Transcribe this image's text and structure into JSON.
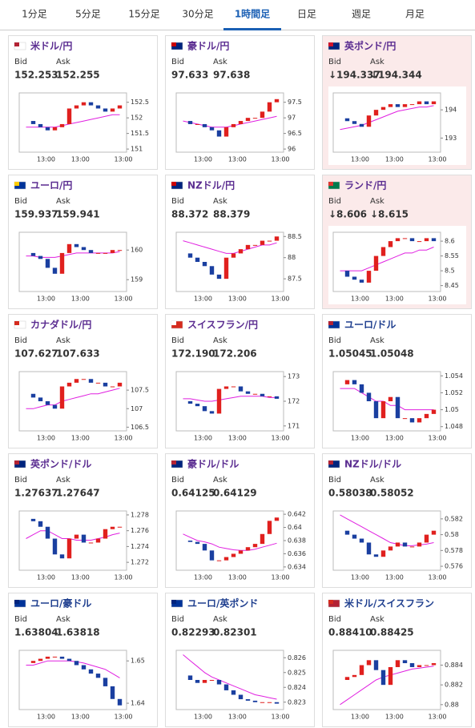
{
  "tabs": [
    "1分足",
    "5分足",
    "15分足",
    "30分足",
    "1時間足",
    "日足",
    "週足",
    "月足"
  ],
  "active_tab": 4,
  "cards": [
    {
      "name": "米ドル/円",
      "title_color": "#5b2d91",
      "highlight": false,
      "bid_label": "Bid",
      "ask_label": "Ask",
      "bid": "152.253",
      "ask": "152.255",
      "chart": {
        "ylim": [
          150.9,
          152.8
        ],
        "yticks": [
          151,
          151.5,
          152,
          152.5
        ],
        "xlabels": [
          "13:00",
          "13:00",
          "13:00"
        ],
        "close": [
          151.9,
          151.8,
          151.7,
          151.6,
          151.7,
          151.8,
          152.3,
          152.4,
          152.5,
          152.4,
          152.3,
          152.2,
          152.3,
          152.4
        ],
        "ma": [
          151.7,
          151.7,
          151.7,
          151.7,
          151.7,
          151.75,
          151.8,
          151.85,
          151.9,
          151.95,
          152.0,
          152.05,
          152.1,
          152.1
        ]
      }
    },
    {
      "name": "豪ドル/円",
      "title_color": "#5b2d91",
      "highlight": false,
      "bid_label": "Bid",
      "ask_label": "Ask",
      "bid": "97.633",
      "ask": "97.638",
      "chart": {
        "ylim": [
          95.9,
          97.8
        ],
        "yticks": [
          96,
          96.5,
          97,
          97.5
        ],
        "xlabels": [
          "13:00",
          "13:00",
          "13:00"
        ],
        "close": [
          96.9,
          96.8,
          96.8,
          96.7,
          96.6,
          96.4,
          96.7,
          96.8,
          96.9,
          97.0,
          97.0,
          97.2,
          97.5,
          97.6
        ],
        "ma": [
          96.9,
          96.85,
          96.8,
          96.75,
          96.7,
          96.7,
          96.7,
          96.75,
          96.8,
          96.85,
          96.9,
          96.95,
          97.0,
          97.05
        ]
      }
    },
    {
      "name": "英ポンド/円",
      "title_color": "#5b2d91",
      "highlight": true,
      "bid_label": "Bid",
      "ask_label": "Ask",
      "bid": "↓194.337",
      "ask": "↓194.344",
      "chart": {
        "ylim": [
          192.5,
          194.6
        ],
        "yticks": [
          193,
          194
        ],
        "xlabels": [
          "13:00",
          "13:00",
          "13:00"
        ],
        "close": [
          193.7,
          193.6,
          193.5,
          193.4,
          193.8,
          194.0,
          194.1,
          194.2,
          194.1,
          194.2,
          194.2,
          194.3,
          194.2,
          194.3
        ],
        "ma": [
          193.3,
          193.35,
          193.4,
          193.45,
          193.55,
          193.65,
          193.75,
          193.85,
          193.95,
          194.0,
          194.05,
          194.1,
          194.1,
          194.15
        ]
      }
    },
    {
      "name": "ユーロ/円",
      "title_color": "#5b2d91",
      "highlight": false,
      "bid_label": "Bid",
      "ask_label": "Ask",
      "bid": "159.937",
      "ask": "159.941",
      "chart": {
        "ylim": [
          158.6,
          160.6
        ],
        "yticks": [
          159,
          160
        ],
        "xlabels": [
          "13:00",
          "13:00",
          "13:00"
        ],
        "close": [
          159.9,
          159.8,
          159.7,
          159.4,
          159.2,
          159.9,
          160.2,
          160.1,
          160.0,
          159.9,
          159.9,
          159.9,
          160.0,
          160.0
        ],
        "ma": [
          159.8,
          159.8,
          159.75,
          159.75,
          159.75,
          159.8,
          159.85,
          159.9,
          159.9,
          159.9,
          159.9,
          159.9,
          159.9,
          159.95
        ]
      }
    },
    {
      "name": "NZドル/円",
      "title_color": "#5b2d91",
      "highlight": false,
      "bid_label": "Bid",
      "ask_label": "Ask",
      "bid": "88.372",
      "ask": "88.379",
      "chart": {
        "ylim": [
          87.2,
          88.6
        ],
        "yticks": [
          87.5,
          88,
          88.5
        ],
        "xlabels": [
          "13:00",
          "13:00",
          "13:00"
        ],
        "close": [
          88.1,
          88.0,
          87.9,
          87.8,
          87.6,
          87.5,
          88.0,
          88.1,
          88.2,
          88.3,
          88.3,
          88.4,
          88.4,
          88.5
        ],
        "ma": [
          88.4,
          88.35,
          88.3,
          88.25,
          88.2,
          88.15,
          88.1,
          88.1,
          88.15,
          88.2,
          88.25,
          88.3,
          88.3,
          88.35
        ]
      }
    },
    {
      "name": "ランド/円",
      "title_color": "#5b2d91",
      "highlight": true,
      "bid_label": "Bid",
      "ask_label": "Ask",
      "bid": "↓8.606",
      "ask": "↓8.615",
      "chart": {
        "ylim": [
          8.43,
          8.63
        ],
        "yticks": [
          8.45,
          8.5,
          8.55,
          8.6
        ],
        "xlabels": [
          "13:00",
          "13:00",
          "13:00"
        ],
        "close": [
          8.5,
          8.48,
          8.47,
          8.46,
          8.5,
          8.55,
          8.58,
          8.6,
          8.61,
          8.61,
          8.6,
          8.6,
          8.61,
          8.6
        ],
        "ma": [
          8.5,
          8.5,
          8.5,
          8.5,
          8.51,
          8.52,
          8.53,
          8.54,
          8.55,
          8.56,
          8.56,
          8.57,
          8.57,
          8.58
        ]
      }
    },
    {
      "name": "カナダドル/円",
      "title_color": "#5b2d91",
      "highlight": false,
      "bid_label": "Bid",
      "ask_label": "Ask",
      "bid": "107.627",
      "ask": "107.633",
      "chart": {
        "ylim": [
          106.4,
          108.0
        ],
        "yticks": [
          106.5,
          107,
          107.5
        ],
        "xlabels": [
          "13:00",
          "13:00",
          "13:00"
        ],
        "close": [
          107.4,
          107.3,
          107.2,
          107.1,
          107.0,
          107.6,
          107.7,
          107.8,
          107.8,
          107.7,
          107.7,
          107.6,
          107.6,
          107.7
        ],
        "ma": [
          107.0,
          107.0,
          107.05,
          107.1,
          107.1,
          107.2,
          107.25,
          107.3,
          107.35,
          107.4,
          107.4,
          107.45,
          107.5,
          107.55
        ]
      }
    },
    {
      "name": "スイスフラン/円",
      "title_color": "#5b2d91",
      "highlight": false,
      "bid_label": "Bid",
      "ask_label": "Ask",
      "bid": "172.190",
      "ask": "172.206",
      "chart": {
        "ylim": [
          170.8,
          173.2
        ],
        "yticks": [
          171,
          172,
          173
        ],
        "xlabels": [
          "13:00",
          "13:00",
          "13:00"
        ],
        "close": [
          172.0,
          171.9,
          171.8,
          171.6,
          171.5,
          172.5,
          172.6,
          172.6,
          172.4,
          172.3,
          172.3,
          172.2,
          172.2,
          172.1
        ],
        "ma": [
          172.1,
          172.1,
          172.05,
          172.0,
          172.0,
          172.05,
          172.1,
          172.15,
          172.2,
          172.2,
          172.2,
          172.2,
          172.15,
          172.15
        ]
      }
    },
    {
      "name": "ユーロ/ドル",
      "title_color": "#1f3f8f",
      "highlight": false,
      "bid_label": "Bid",
      "ask_label": "Ask",
      "bid": "1.05045",
      "ask": "1.05048",
      "chart": {
        "ylim": [
          1.0475,
          1.0545
        ],
        "yticks": [
          1.048,
          1.05,
          1.052,
          1.054
        ],
        "xlabels": [
          "13:00",
          "13:00",
          "13:00"
        ],
        "close": [
          1.053,
          1.0535,
          1.053,
          1.052,
          1.051,
          1.049,
          1.051,
          1.0515,
          1.049,
          1.049,
          1.0485,
          1.049,
          1.0495,
          1.05
        ],
        "ma": [
          1.0525,
          1.0525,
          1.0525,
          1.052,
          1.0515,
          1.051,
          1.051,
          1.0505,
          1.0505,
          1.05,
          1.05,
          1.05,
          1.05,
          1.05
        ]
      }
    },
    {
      "name": "英ポンド/ドル",
      "title_color": "#5b2d91",
      "highlight": false,
      "bid_label": "Bid",
      "ask_label": "Ask",
      "bid": "1.27637",
      "ask": "1.27647",
      "chart": {
        "ylim": [
          1.271,
          1.2785
        ],
        "yticks": [
          1.272,
          1.274,
          1.276,
          1.278
        ],
        "xlabels": [
          "13:00",
          "13:00",
          "13:00"
        ],
        "close": [
          1.2775,
          1.2772,
          1.2765,
          1.275,
          1.273,
          1.2725,
          1.275,
          1.2755,
          1.2745,
          1.2745,
          1.275,
          1.2762,
          1.2765,
          1.2765
        ],
        "ma": [
          1.275,
          1.2755,
          1.276,
          1.276,
          1.2755,
          1.275,
          1.275,
          1.2748,
          1.2748,
          1.2748,
          1.275,
          1.2752,
          1.2755,
          1.2757
        ]
      }
    },
    {
      "name": "豪ドル/ドル",
      "title_color": "#5b2d91",
      "highlight": false,
      "bid_label": "Bid",
      "ask_label": "Ask",
      "bid": "0.64125",
      "ask": "0.64129",
      "chart": {
        "ylim": [
          0.6335,
          0.6425
        ],
        "yticks": [
          0.634,
          0.636,
          0.638,
          0.64,
          0.642
        ],
        "xlabels": [
          "13:00",
          "13:00",
          "13:00"
        ],
        "close": [
          0.638,
          0.6378,
          0.6375,
          0.6365,
          0.635,
          0.635,
          0.6355,
          0.636,
          0.6365,
          0.637,
          0.6375,
          0.639,
          0.641,
          0.6415
        ],
        "ma": [
          0.639,
          0.6385,
          0.638,
          0.6378,
          0.6375,
          0.637,
          0.6368,
          0.6366,
          0.6365,
          0.6365,
          0.6367,
          0.637,
          0.6373,
          0.6376
        ]
      }
    },
    {
      "name": "NZドル/ドル",
      "title_color": "#5b2d91",
      "highlight": false,
      "bid_label": "Bid",
      "ask_label": "Ask",
      "bid": "0.58038",
      "ask": "0.58052",
      "chart": {
        "ylim": [
          0.5755,
          0.583
        ],
        "yticks": [
          0.576,
          0.578,
          0.58,
          0.582
        ],
        "xlabels": [
          "13:00",
          "13:00",
          "13:00"
        ],
        "close": [
          0.5805,
          0.58,
          0.5795,
          0.579,
          0.5775,
          0.5772,
          0.578,
          0.5785,
          0.579,
          0.5785,
          0.5785,
          0.579,
          0.58,
          0.5805
        ],
        "ma": [
          0.5825,
          0.582,
          0.5815,
          0.581,
          0.5805,
          0.58,
          0.5795,
          0.579,
          0.5788,
          0.5786,
          0.5786,
          0.5787,
          0.5788,
          0.579
        ]
      }
    },
    {
      "name": "ユーロ/豪ドル",
      "title_color": "#1f3f8f",
      "highlight": false,
      "bid_label": "Bid",
      "ask_label": "Ask",
      "bid": "1.63804",
      "ask": "1.63818",
      "chart": {
        "ylim": [
          1.6385,
          1.6525
        ],
        "yticks": [
          1.64,
          1.65
        ],
        "xlabels": [
          "13:00",
          "13:00",
          "13:00"
        ],
        "close": [
          1.6495,
          1.65,
          1.6505,
          1.651,
          1.651,
          1.6505,
          1.65,
          1.649,
          1.648,
          1.647,
          1.646,
          1.644,
          1.641,
          1.6395
        ],
        "ma": [
          1.649,
          1.649,
          1.6495,
          1.65,
          1.65,
          1.65,
          1.65,
          1.6498,
          1.6495,
          1.649,
          1.6485,
          1.648,
          1.647,
          1.646
        ]
      }
    },
    {
      "name": "ユーロ/英ポンド",
      "title_color": "#1f3f8f",
      "highlight": false,
      "bid_label": "Bid",
      "ask_label": "Ask",
      "bid": "0.82293",
      "ask": "0.82301",
      "chart": {
        "ylim": [
          0.8225,
          0.8265
        ],
        "yticks": [
          0.823,
          0.824,
          0.825,
          0.826
        ],
        "xlabels": [
          "13:00",
          "13:00",
          "13:00"
        ],
        "close": [
          0.8248,
          0.8245,
          0.8243,
          0.8245,
          0.8245,
          0.8242,
          0.8238,
          0.8235,
          0.8232,
          0.8231,
          0.823,
          0.823,
          0.823,
          0.8229
        ],
        "ma": [
          0.8262,
          0.8258,
          0.8254,
          0.825,
          0.8247,
          0.8245,
          0.8243,
          0.8241,
          0.8239,
          0.8237,
          0.8235,
          0.8234,
          0.8233,
          0.8232
        ]
      }
    },
    {
      "name": "米ドル/スイスフラン",
      "title_color": "#1f3f8f",
      "highlight": false,
      "bid_label": "Bid",
      "ask_label": "Ask",
      "bid": "0.88410",
      "ask": "0.88425",
      "chart": {
        "ylim": [
          0.8795,
          0.8855
        ],
        "yticks": [
          0.88,
          0.882,
          0.884
        ],
        "xlabels": [
          "13:00",
          "13:00",
          "13:00"
        ],
        "close": [
          0.8825,
          0.8828,
          0.883,
          0.884,
          0.8845,
          0.8835,
          0.882,
          0.8838,
          0.8845,
          0.8842,
          0.8838,
          0.884,
          0.884,
          0.8842
        ],
        "ma": [
          0.88,
          0.8805,
          0.881,
          0.8815,
          0.882,
          0.8825,
          0.8828,
          0.883,
          0.8832,
          0.8834,
          0.8836,
          0.8837,
          0.8838,
          0.8839
        ]
      }
    }
  ]
}
